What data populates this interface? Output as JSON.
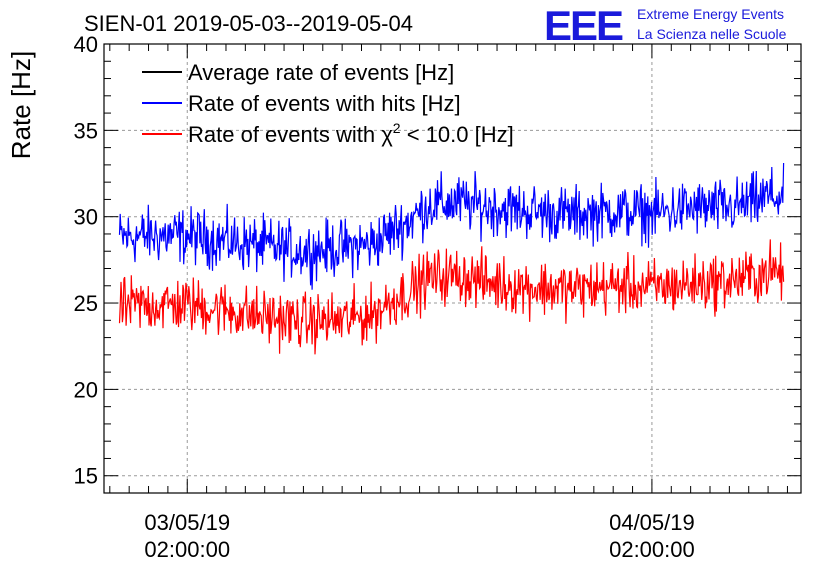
{
  "chart_data": {
    "type": "line",
    "title": "SIEN-01 2019-05-03--2019-05-04",
    "ylabel": "Rate [Hz]",
    "xlabel": "",
    "ylim": [
      14,
      40
    ],
    "yticks": [
      15,
      20,
      25,
      30,
      35,
      40
    ],
    "x_tick_labels": [
      {
        "date": "03/05/19",
        "time": "02:00:00"
      },
      {
        "date": "04/05/19",
        "time": "02:00:00"
      }
    ],
    "x_range_hours": [
      -4.3,
      31.7
    ],
    "x_major_tick_hours": [
      0,
      24
    ],
    "grid": true,
    "legend_position": "top-left",
    "series": [
      {
        "name": "Average rate of events [Hz]",
        "color": "#000000",
        "hours": [],
        "values": []
      },
      {
        "name": "Rate of events with hits [Hz]",
        "color": "#0000ff",
        "hours": [
          -3.5,
          -2,
          0,
          2,
          4,
          6,
          8,
          9.5,
          10.5,
          11.5,
          12.5,
          14,
          16,
          18,
          20,
          22,
          24,
          26,
          28,
          29.5,
          30,
          30.8
        ],
        "values": [
          28.8,
          28.9,
          28.9,
          28.6,
          28.3,
          28.0,
          28.2,
          28.4,
          29.1,
          29.8,
          30.7,
          30.8,
          30.5,
          30.3,
          30.1,
          30.3,
          30.2,
          30.5,
          30.5,
          30.9,
          31.2,
          31.1
        ]
      },
      {
        "name": "Rate of events with χ² < 10.0 [Hz]",
        "color": "#ff0000",
        "hours": [
          -3.5,
          -2,
          0,
          2,
          4,
          6,
          8,
          9.5,
          10.5,
          11.5,
          12.5,
          14,
          16,
          18,
          20,
          22,
          24,
          26,
          28,
          29.5,
          30,
          30.8
        ],
        "values": [
          24.8,
          24.9,
          24.9,
          24.6,
          24.2,
          23.9,
          24.0,
          24.3,
          25.1,
          25.7,
          26.5,
          26.6,
          26.1,
          25.9,
          25.8,
          26.0,
          25.9,
          26.1,
          26.3,
          26.6,
          26.9,
          26.7
        ]
      }
    ]
  },
  "legend": {
    "entries": [
      {
        "text": "Average rate of events [Hz]",
        "color": "#000000"
      },
      {
        "text": "Rate of events with hits [Hz]",
        "color": "#0000ff"
      },
      {
        "text_prefix": "Rate of events with ",
        "chi": "χ",
        "sup": "2",
        "text_suffix": " < 10.0 [Hz]",
        "color": "#ff0000"
      }
    ]
  },
  "logo": {
    "mark": "EEE",
    "line1": "Extreme Energy Events",
    "line2": "La Scienza nelle Scuole",
    "color": "#1a1adb"
  }
}
